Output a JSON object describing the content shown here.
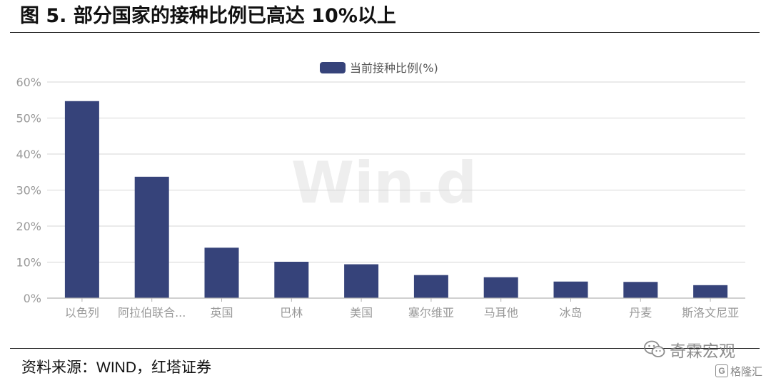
{
  "figure": {
    "title": "图 5. 部分国家的接种比例已高达 10%以上",
    "source_prefix": "资料来源：",
    "source_wind": "WIND",
    "source_suffix": "，红塔证券"
  },
  "watermark": {
    "wind": "Win.d",
    "wechat_name": "奇霖宏观",
    "wechat_icon": "wechat-icon",
    "brand": "格隆汇",
    "brand_icon_letter": "G"
  },
  "colors": {
    "bar": "#36437a",
    "grid": "#d6d6d6",
    "axis": "#b3b3b3",
    "tick_text": "#999999",
    "legend_text": "#555555",
    "watermark": "#eeeeee"
  },
  "chart_data": {
    "type": "bar",
    "title": "",
    "xlabel": "",
    "ylabel": "",
    "categories": [
      "以色列",
      "阿拉伯联合...",
      "英国",
      "巴林",
      "美国",
      "塞尔维亚",
      "马耳他",
      "冰岛",
      "丹麦",
      "斯洛文尼亚"
    ],
    "series": [
      {
        "name": "当前接种比例(%)",
        "values": [
          54.7,
          33.7,
          14.0,
          10.1,
          9.4,
          6.4,
          5.8,
          4.6,
          4.5,
          3.6
        ]
      }
    ],
    "ylim": [
      0,
      60
    ],
    "yticks": [
      0,
      10,
      20,
      30,
      40,
      50,
      60
    ],
    "ytick_labels": [
      "0%",
      "10%",
      "20%",
      "30%",
      "40%",
      "50%",
      "60%"
    ],
    "grid": true,
    "legend_position": "top-center"
  }
}
